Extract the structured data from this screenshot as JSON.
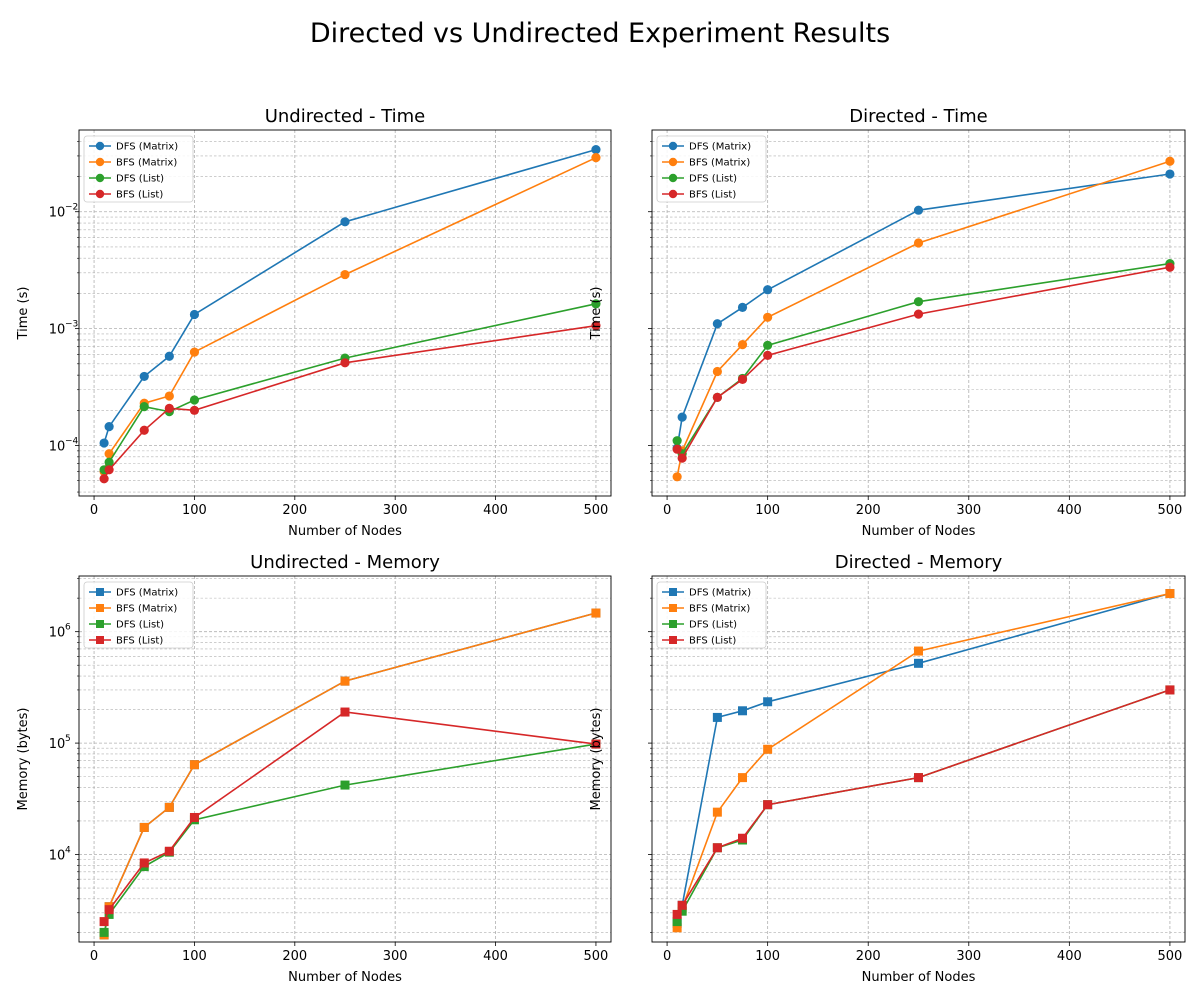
{
  "figure_title": "Directed vs Undirected Experiment Results",
  "chart_data": [
    {
      "type": "line",
      "title": "Undirected - Time",
      "xlabel": "Number of Nodes",
      "ylabel": "Time (s)",
      "xlim": [
        -15,
        515
      ],
      "xticks": [
        0,
        100,
        200,
        300,
        400,
        500
      ],
      "xtick_labels": [
        "0",
        "100",
        "200",
        "300",
        "400",
        "500"
      ],
      "yscale": "log",
      "ylim": [
        3.7e-05,
        0.05
      ],
      "yticks": [
        0.0001,
        0.001,
        0.01
      ],
      "ytick_labels": [
        "10",
        "10",
        "10"
      ],
      "ytick_exps": [
        "−4",
        "−3",
        "−2"
      ],
      "grid": true,
      "legend": "upper-left",
      "marker": "circle",
      "x": [
        10,
        15,
        50,
        75,
        100,
        250,
        500
      ],
      "series": [
        {
          "name": "DFS (Matrix)",
          "color": "#1f77b4",
          "values": [
            0.000105,
            0.000145,
            0.00039,
            0.00058,
            0.00132,
            0.0082,
            0.034
          ]
        },
        {
          "name": "BFS (Matrix)",
          "color": "#ff7f0e",
          "values": [
            6e-05,
            8.5e-05,
            0.00023,
            0.000265,
            0.00063,
            0.0029,
            0.029
          ]
        },
        {
          "name": "DFS (List)",
          "color": "#2ca02c",
          "values": [
            6.2e-05,
            7.2e-05,
            0.000215,
            0.000195,
            0.000245,
            0.00056,
            0.00163
          ]
        },
        {
          "name": "BFS (List)",
          "color": "#d62728",
          "values": [
            5.2e-05,
            6.2e-05,
            0.000135,
            0.000208,
            0.0002,
            0.00051,
            0.00106
          ]
        }
      ]
    },
    {
      "type": "line",
      "title": "Directed - Time",
      "xlabel": "Number of Nodes",
      "ylabel": "Time (s)",
      "xlim": [
        -15,
        515
      ],
      "xticks": [
        0,
        100,
        200,
        300,
        400,
        500
      ],
      "xtick_labels": [
        "0",
        "100",
        "200",
        "300",
        "400",
        "500"
      ],
      "yscale": "log",
      "ylim": [
        3.7e-05,
        0.05
      ],
      "yticks": [
        0.0001,
        0.001,
        0.01
      ],
      "ytick_labels": [],
      "ytick_exps": [],
      "grid": true,
      "legend": "upper-left",
      "marker": "circle",
      "x": [
        10,
        15,
        50,
        75,
        100,
        250,
        500
      ],
      "series": [
        {
          "name": "DFS (Matrix)",
          "color": "#1f77b4",
          "values": [
            9.5e-05,
            0.000175,
            0.0011,
            0.00152,
            0.00215,
            0.0103,
            0.021
          ]
        },
        {
          "name": "BFS (Matrix)",
          "color": "#ff7f0e",
          "values": [
            5.4e-05,
            9e-05,
            0.00043,
            0.00073,
            0.00125,
            0.0054,
            0.027
          ]
        },
        {
          "name": "DFS (List)",
          "color": "#2ca02c",
          "values": [
            0.00011,
            8.5e-05,
            0.000258,
            0.000375,
            0.00072,
            0.0017,
            0.0036
          ]
        },
        {
          "name": "BFS (List)",
          "color": "#d62728",
          "values": [
            9.3e-05,
            7.8e-05,
            0.000258,
            0.000368,
            0.00059,
            0.00133,
            0.00335
          ]
        }
      ]
    },
    {
      "type": "line",
      "title": "Undirected - Memory",
      "xlabel": "Number of Nodes",
      "ylabel": "Memory (bytes)",
      "xlim": [
        -15,
        515
      ],
      "xticks": [
        0,
        100,
        200,
        300,
        400,
        500
      ],
      "xtick_labels": [
        "0",
        "100",
        "200",
        "300",
        "400",
        "500"
      ],
      "yscale": "log",
      "ylim": [
        1640,
        3160000
      ],
      "yticks": [
        10000,
        100000,
        1000000
      ],
      "ytick_labels": [
        "10",
        "10",
        "10"
      ],
      "ytick_exps": [
        "4",
        "5",
        "6"
      ],
      "grid": true,
      "legend": "upper-left",
      "marker": "square",
      "x": [
        10,
        15,
        50,
        75,
        100,
        250,
        500
      ],
      "series": [
        {
          "name": "DFS (Matrix)",
          "color": "#1f77b4",
          "values": [
            1900,
            3400,
            17500,
            26500,
            64000,
            360000,
            1470000
          ]
        },
        {
          "name": "BFS (Matrix)",
          "color": "#ff7f0e",
          "values": [
            1900,
            3400,
            17500,
            26500,
            64000,
            360000,
            1470000
          ]
        },
        {
          "name": "DFS (List)",
          "color": "#2ca02c",
          "values": [
            2000,
            2900,
            7800,
            10500,
            20500,
            42000,
            98000
          ]
        },
        {
          "name": "BFS (List)",
          "color": "#d62728",
          "values": [
            2500,
            3200,
            8400,
            10700,
            21500,
            190000,
            98000
          ]
        }
      ]
    },
    {
      "type": "line",
      "title": "Directed - Memory",
      "xlabel": "Number of Nodes",
      "ylabel": "Memory (bytes)",
      "xlim": [
        -15,
        515
      ],
      "xticks": [
        0,
        100,
        200,
        300,
        400,
        500
      ],
      "xtick_labels": [
        "0",
        "100",
        "200",
        "300",
        "400",
        "500"
      ],
      "yscale": "log",
      "ylim": [
        1640,
        3160000
      ],
      "yticks": [
        10000,
        100000,
        1000000
      ],
      "ytick_labels": [],
      "ytick_exps": [],
      "grid": true,
      "legend": "upper-left",
      "marker": "square",
      "x": [
        10,
        15,
        50,
        75,
        100,
        250,
        500
      ],
      "series": [
        {
          "name": "DFS (Matrix)",
          "color": "#1f77b4",
          "values": [
            2400,
            3500,
            170000,
            195000,
            235000,
            520000,
            2200000
          ]
        },
        {
          "name": "BFS (Matrix)",
          "color": "#ff7f0e",
          "values": [
            2200,
            3300,
            24000,
            49000,
            88000,
            670000,
            2200000
          ]
        },
        {
          "name": "DFS (List)",
          "color": "#2ca02c",
          "values": [
            2500,
            3100,
            11500,
            13500,
            28000,
            49000,
            300000
          ]
        },
        {
          "name": "BFS (List)",
          "color": "#d62728",
          "values": [
            2900,
            3500,
            11500,
            14000,
            28000,
            49000,
            300000
          ]
        }
      ]
    }
  ]
}
